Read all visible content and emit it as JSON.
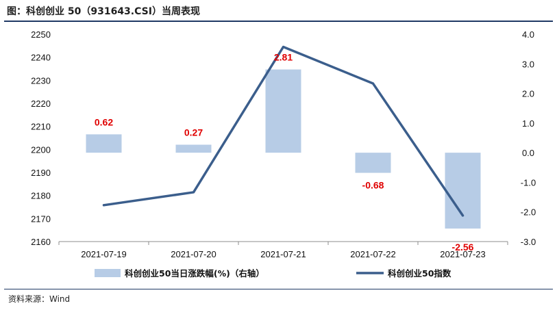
{
  "title": "图：科创创业 50（931643.CSI）当周表现",
  "source": "资料来源：Wind",
  "colors": {
    "bar": "#b7cce6",
    "line": "#3b5e8c",
    "label": "#e00000",
    "rule": "#1f3864"
  },
  "chart_data": {
    "type": "bar+line",
    "categories": [
      "2021-07-19",
      "2021-07-20",
      "2021-07-21",
      "2021-07-22",
      "2021-07-23"
    ],
    "series": [
      {
        "name": "科创创业50当日涨跌幅(%)（右轴）",
        "type": "bar",
        "axis": "right",
        "values": [
          0.62,
          0.27,
          2.81,
          -0.68,
          -2.56
        ],
        "labels": [
          "0.62",
          "0.27",
          "2.81",
          "-0.68",
          "-2.56"
        ]
      },
      {
        "name": "科创创业50指数",
        "type": "line",
        "axis": "left",
        "values": [
          2175.8,
          2181.4,
          2244.5,
          2228.6,
          2171.3
        ]
      }
    ],
    "y_left": {
      "ylim": [
        2160,
        2250
      ],
      "ticks": [
        "2160",
        "2170",
        "2180",
        "2190",
        "2200",
        "2210",
        "2220",
        "2230",
        "2240",
        "2250"
      ]
    },
    "y_right": {
      "ylim": [
        -3.0,
        4.0
      ],
      "ticks": [
        "-3.0",
        "-2.0",
        "-1.0",
        "0.0",
        "1.0",
        "2.0",
        "3.0",
        "4.0"
      ]
    },
    "grid": false,
    "legend_position": "bottom"
  }
}
